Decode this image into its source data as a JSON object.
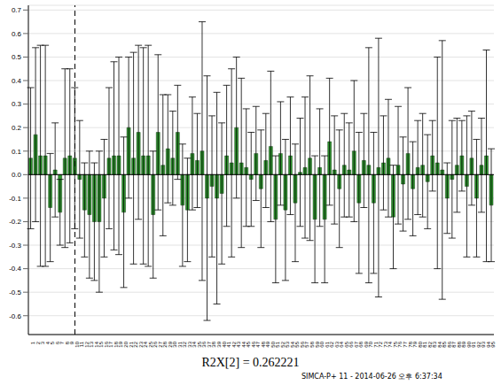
{
  "chart_data": {
    "type": "bar",
    "x_label": "R2X[2] = 0.262221",
    "annotations": [
      "SIMCA-P+ 11 - 2014-06-26 오후 6:37:34"
    ],
    "categories": [
      "1",
      "2",
      "3",
      "4",
      "5",
      "6",
      "7",
      "8",
      "9",
      "10",
      "11",
      "12",
      "13",
      "14",
      "15",
      "16",
      "17",
      "18",
      "19",
      "20",
      "21",
      "22",
      "23",
      "24",
      "25",
      "26",
      "27",
      "28",
      "29",
      "30",
      "31",
      "32",
      "33",
      "34",
      "35",
      "36",
      "37",
      "38",
      "39",
      "40",
      "41",
      "42",
      "43",
      "44",
      "45",
      "46",
      "47",
      "48",
      "49",
      "50",
      "51",
      "52",
      "53",
      "54",
      "55",
      "56",
      "57",
      "58",
      "59",
      "60",
      "61",
      "62",
      "63",
      "64",
      "65",
      "66",
      "67",
      "68",
      "69",
      "70",
      "71",
      "72",
      "73",
      "74",
      "75",
      "76",
      "77",
      "78",
      "79",
      "80",
      "81",
      "82",
      "83",
      "84",
      "85",
      "86",
      "87",
      "88",
      "89",
      "90",
      "91",
      "92",
      "93",
      "94",
      "95"
    ],
    "values": [
      0.07,
      0.17,
      0.08,
      0.08,
      -0.14,
      0.02,
      -0.16,
      0.07,
      0.08,
      0.07,
      -0.02,
      -0.15,
      -0.17,
      -0.2,
      -0.2,
      -0.1,
      0.07,
      0.08,
      0.08,
      -0.16,
      0.2,
      0.07,
      0.18,
      0.08,
      0.08,
      -0.17,
      0.18,
      0.04,
      0.11,
      0.07,
      0.18,
      -0.13,
      -0.15,
      0.09,
      0.06,
      0.1,
      -0.1,
      -0.05,
      -0.1,
      -0.08,
      0.08,
      0.05,
      0.2,
      0.05,
      0.03,
      -0.02,
      0.09,
      -0.06,
      0.06,
      0.12,
      -0.19,
      0.09,
      -0.15,
      0.08,
      -0.12,
      0.01,
      0.03,
      0.07,
      -0.19,
      0.03,
      -0.19,
      0.14,
      0.02,
      -0.06,
      0.04,
      0.02,
      0.1,
      -0.12,
      0.06,
      0.04,
      -0.12,
      0.03,
      0.05,
      0.07,
      -0.18,
      0.04,
      -0.04,
      0.09,
      -0.06,
      0.03,
      0.04,
      -0.03,
      0.08,
      0.05,
      0.02,
      -0.1,
      -0.02,
      0.04,
      0.08,
      -0.05,
      0.07,
      -0.1,
      0.04,
      0.08,
      -0.13
    ],
    "errors": [
      0.3,
      0.37,
      0.47,
      0.47,
      0.23,
      0.2,
      0.14,
      0.38,
      0.37,
      0.3,
      0.25,
      0.2,
      0.27,
      0.25,
      0.3,
      0.25,
      0.3,
      0.4,
      0.42,
      0.32,
      0.3,
      0.45,
      0.37,
      0.46,
      0.47,
      0.27,
      0.33,
      0.3,
      0.23,
      0.2,
      0.2,
      0.26,
      0.22,
      0.24,
      0.2,
      0.55,
      0.52,
      0.3,
      0.45,
      0.3,
      0.3,
      0.4,
      0.3,
      0.36,
      0.25,
      0.2,
      0.2,
      0.25,
      0.2,
      0.32,
      0.27,
      0.22,
      0.3,
      0.25,
      0.25,
      0.23,
      0.3,
      0.35,
      0.27,
      0.25,
      0.27,
      0.27,
      0.23,
      0.25,
      0.22,
      0.2,
      0.3,
      0.3,
      0.2,
      0.5,
      0.3,
      0.55,
      0.2,
      0.25,
      0.22,
      0.25,
      0.2,
      0.28,
      0.2,
      0.2,
      0.22,
      0.2,
      0.15,
      0.45,
      0.55,
      0.15,
      0.25,
      0.2,
      0.15,
      0.3,
      0.2,
      0.25,
      0.2,
      0.45,
      0.24
    ],
    "reference_x": "10",
    "color": "#2f9a2f",
    "ylim": [
      -0.68,
      0.72
    ],
    "yticks": [
      -0.6,
      -0.5,
      -0.4,
      -0.3,
      -0.2,
      -0.1,
      {
        "value": 0,
        "label": "0.0"
      },
      0.1,
      0.2,
      0.3,
      0.4,
      0.5,
      0.6,
      0.7
    ],
    "grid": true
  }
}
